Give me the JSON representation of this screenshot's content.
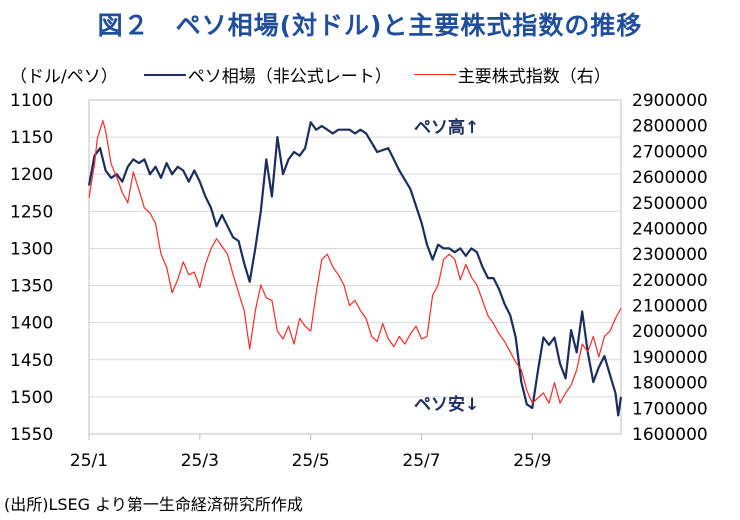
{
  "title": "図２　ペソ相場(対ドル)と主要株式指数の推移",
  "legend": {
    "unit": "（ドル/ペソ）",
    "peso_label": "ペソ相場（非公式レート）",
    "stock_label": "主要株式指数（右）"
  },
  "source": "(出所)LSEG より第一生命経済研究所作成",
  "colors": {
    "title": "#1f4e9c",
    "peso": "#1c2e5e",
    "stock": "#ff2a2a"
  },
  "chart_data": {
    "type": "line",
    "left_axis": {
      "ylim": [
        1100,
        1550
      ],
      "inverted": true,
      "ticks": [
        "1100",
        "1150",
        "1200",
        "1250",
        "1300",
        "1350",
        "1400",
        "1450",
        "1500",
        "1550"
      ]
    },
    "right_axis": {
      "ylim": [
        1600000,
        2900000
      ],
      "ticks": [
        "2900000",
        "2800000",
        "2700000",
        "2600000",
        "2500000",
        "2400000",
        "2300000",
        "2200000",
        "2100000",
        "2000000",
        "1900000",
        "1800000",
        "1700000",
        "1600000"
      ]
    },
    "x_ticks": [
      "25/1",
      "25/3",
      "25/5",
      "25/7",
      "25/9"
    ],
    "xlim_months": [
      0,
      9.6
    ],
    "annotations": {
      "peso_high": "ペソ高↑",
      "peso_low": "ペソ安↓"
    },
    "series": [
      {
        "name": "ペソ相場（非公式レート）",
        "axis": "left",
        "x": [
          0,
          0.1,
          0.2,
          0.3,
          0.4,
          0.5,
          0.6,
          0.7,
          0.8,
          0.9,
          1.0,
          1.1,
          1.2,
          1.3,
          1.4,
          1.5,
          1.6,
          1.7,
          1.8,
          1.9,
          2.0,
          2.1,
          2.2,
          2.3,
          2.4,
          2.5,
          2.6,
          2.7,
          2.8,
          2.9,
          3.0,
          3.1,
          3.2,
          3.3,
          3.4,
          3.5,
          3.6,
          3.7,
          3.8,
          3.9,
          4.0,
          4.1,
          4.2,
          4.3,
          4.4,
          4.5,
          4.6,
          4.7,
          4.8,
          4.9,
          5.0,
          5.2,
          5.4,
          5.6,
          5.8,
          6.0,
          6.1,
          6.2,
          6.3,
          6.4,
          6.5,
          6.6,
          6.7,
          6.8,
          6.9,
          7.0,
          7.1,
          7.2,
          7.3,
          7.4,
          7.5,
          7.6,
          7.7,
          7.8,
          7.9,
          8.0,
          8.1,
          8.2,
          8.3,
          8.4,
          8.5,
          8.6,
          8.7,
          8.8,
          8.9,
          9.0,
          9.1,
          9.2,
          9.3,
          9.4,
          9.5,
          9.55,
          9.6
        ],
        "values": [
          1215,
          1175,
          1165,
          1195,
          1205,
          1200,
          1210,
          1190,
          1180,
          1185,
          1180,
          1200,
          1190,
          1205,
          1185,
          1200,
          1190,
          1195,
          1210,
          1195,
          1210,
          1230,
          1245,
          1270,
          1255,
          1270,
          1285,
          1290,
          1320,
          1345,
          1300,
          1250,
          1180,
          1230,
          1150,
          1200,
          1180,
          1170,
          1175,
          1165,
          1130,
          1140,
          1135,
          1140,
          1145,
          1140,
          1140,
          1140,
          1145,
          1140,
          1145,
          1170,
          1165,
          1195,
          1220,
          1265,
          1295,
          1315,
          1295,
          1300,
          1300,
          1305,
          1300,
          1310,
          1300,
          1305,
          1325,
          1340,
          1340,
          1355,
          1375,
          1390,
          1420,
          1480,
          1510,
          1515,
          1465,
          1420,
          1430,
          1420,
          1455,
          1475,
          1410,
          1440,
          1385,
          1440,
          1480,
          1460,
          1445,
          1470,
          1495,
          1525,
          1500
        ]
      },
      {
        "name": "主要株式指数（右）",
        "axis": "right",
        "x": [
          0,
          0.1,
          0.15,
          0.25,
          0.3,
          0.4,
          0.5,
          0.6,
          0.7,
          0.8,
          0.9,
          1.0,
          1.1,
          1.2,
          1.3,
          1.4,
          1.5,
          1.6,
          1.7,
          1.8,
          1.9,
          2.0,
          2.1,
          2.2,
          2.3,
          2.4,
          2.5,
          2.6,
          2.7,
          2.8,
          2.9,
          3.0,
          3.1,
          3.2,
          3.3,
          3.4,
          3.5,
          3.6,
          3.7,
          3.8,
          3.9,
          4.0,
          4.1,
          4.2,
          4.3,
          4.4,
          4.5,
          4.6,
          4.7,
          4.8,
          4.9,
          5.0,
          5.1,
          5.2,
          5.3,
          5.4,
          5.5,
          5.6,
          5.7,
          5.8,
          5.9,
          6.0,
          6.1,
          6.2,
          6.3,
          6.4,
          6.5,
          6.6,
          6.7,
          6.8,
          6.9,
          7.0,
          7.1,
          7.2,
          7.3,
          7.4,
          7.5,
          7.6,
          7.7,
          7.8,
          7.9,
          8.0,
          8.1,
          8.2,
          8.3,
          8.4,
          8.5,
          8.6,
          8.7,
          8.8,
          8.9,
          9.0,
          9.1,
          9.2,
          9.3,
          9.4,
          9.5,
          9.6
        ],
        "values": [
          2520,
          2650,
          2750,
          2820,
          2780,
          2650,
          2600,
          2540,
          2500,
          2620,
          2550,
          2480,
          2460,
          2420,
          2300,
          2250,
          2150,
          2200,
          2270,
          2220,
          2230,
          2170,
          2260,
          2320,
          2360,
          2330,
          2300,
          2220,
          2150,
          2080,
          1930,
          2080,
          2180,
          2130,
          2120,
          2000,
          1970,
          2020,
          1950,
          2050,
          2020,
          2000,
          2150,
          2280,
          2300,
          2250,
          2220,
          2180,
          2100,
          2120,
          2080,
          2050,
          1980,
          1960,
          2030,
          1970,
          1940,
          1980,
          1950,
          1990,
          2020,
          1970,
          1980,
          2140,
          2180,
          2280,
          2300,
          2280,
          2200,
          2260,
          2210,
          2180,
          2120,
          2060,
          2030,
          1990,
          1960,
          1920,
          1880,
          1850,
          1770,
          1720,
          1740,
          1760,
          1720,
          1800,
          1720,
          1760,
          1790,
          1850,
          1950,
          1920,
          1980,
          1900,
          1980,
          2000,
          2050,
          2090
        ]
      }
    ]
  }
}
